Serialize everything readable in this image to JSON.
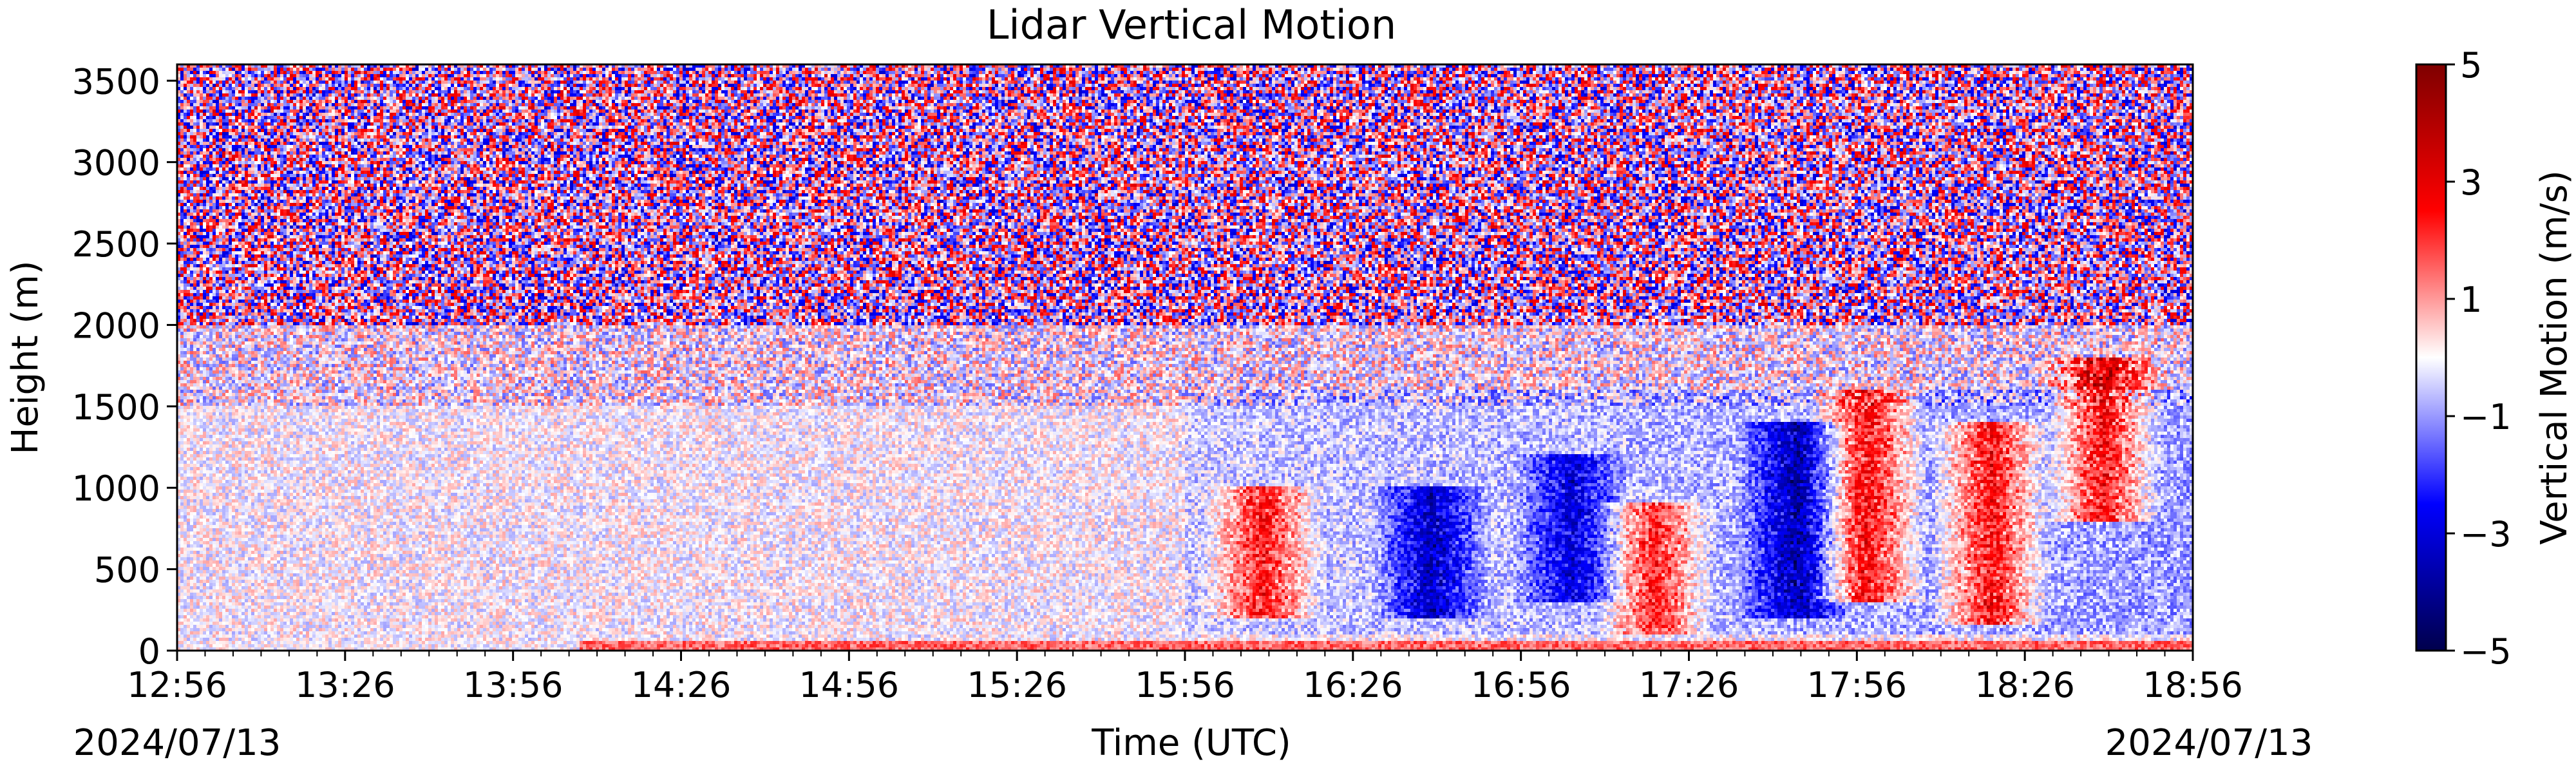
{
  "chart_data": {
    "type": "heatmap",
    "title": "Lidar Vertical Motion",
    "xlabel": "Time (UTC)",
    "ylabel": "Height (m)",
    "x_start": "12:56",
    "x_end": "18:56",
    "x_ticks": [
      "12:56",
      "13:26",
      "13:56",
      "14:26",
      "14:56",
      "15:26",
      "15:56",
      "16:26",
      "16:56",
      "17:26",
      "17:56",
      "18:26",
      "18:56"
    ],
    "x_date_left": "2024/07/13",
    "x_date_right": "2024/07/13",
    "y_ticks": [
      0,
      500,
      1000,
      1500,
      2000,
      2500,
      3000,
      3500
    ],
    "ylim": [
      0,
      3600
    ],
    "colorbar": {
      "label": "Vertical Motion (m/s)",
      "min": -5,
      "max": 5,
      "ticks": [
        -5,
        -3,
        -1,
        1,
        3,
        5
      ],
      "tick_labels": [
        "−5",
        "−3",
        "−1",
        "1",
        "3",
        "5"
      ],
      "colors": [
        "#00004c",
        "#0000ff",
        "#ffffff",
        "#ff0000",
        "#7f0000"
      ]
    },
    "features": [
      {
        "time": "16:10",
        "height_min": 200,
        "height_max": 1000,
        "value": 3
      },
      {
        "time": "17:20",
        "height_min": 100,
        "height_max": 900,
        "value": 3
      },
      {
        "time": "17:58",
        "height_min": 300,
        "height_max": 1600,
        "value": 3.5
      },
      {
        "time": "18:20",
        "height_min": 150,
        "height_max": 1400,
        "value": 3.5
      },
      {
        "time": "18:40",
        "height_min": 800,
        "height_max": 1800,
        "value": 3.5
      },
      {
        "time": "16:40",
        "height_min": 200,
        "height_max": 1000,
        "value": -3
      },
      {
        "time": "17:45",
        "height_min": 200,
        "height_max": 1400,
        "value": -3
      },
      {
        "time": "17:05",
        "height_min": 300,
        "height_max": 1200,
        "value": -2.5
      }
    ]
  }
}
